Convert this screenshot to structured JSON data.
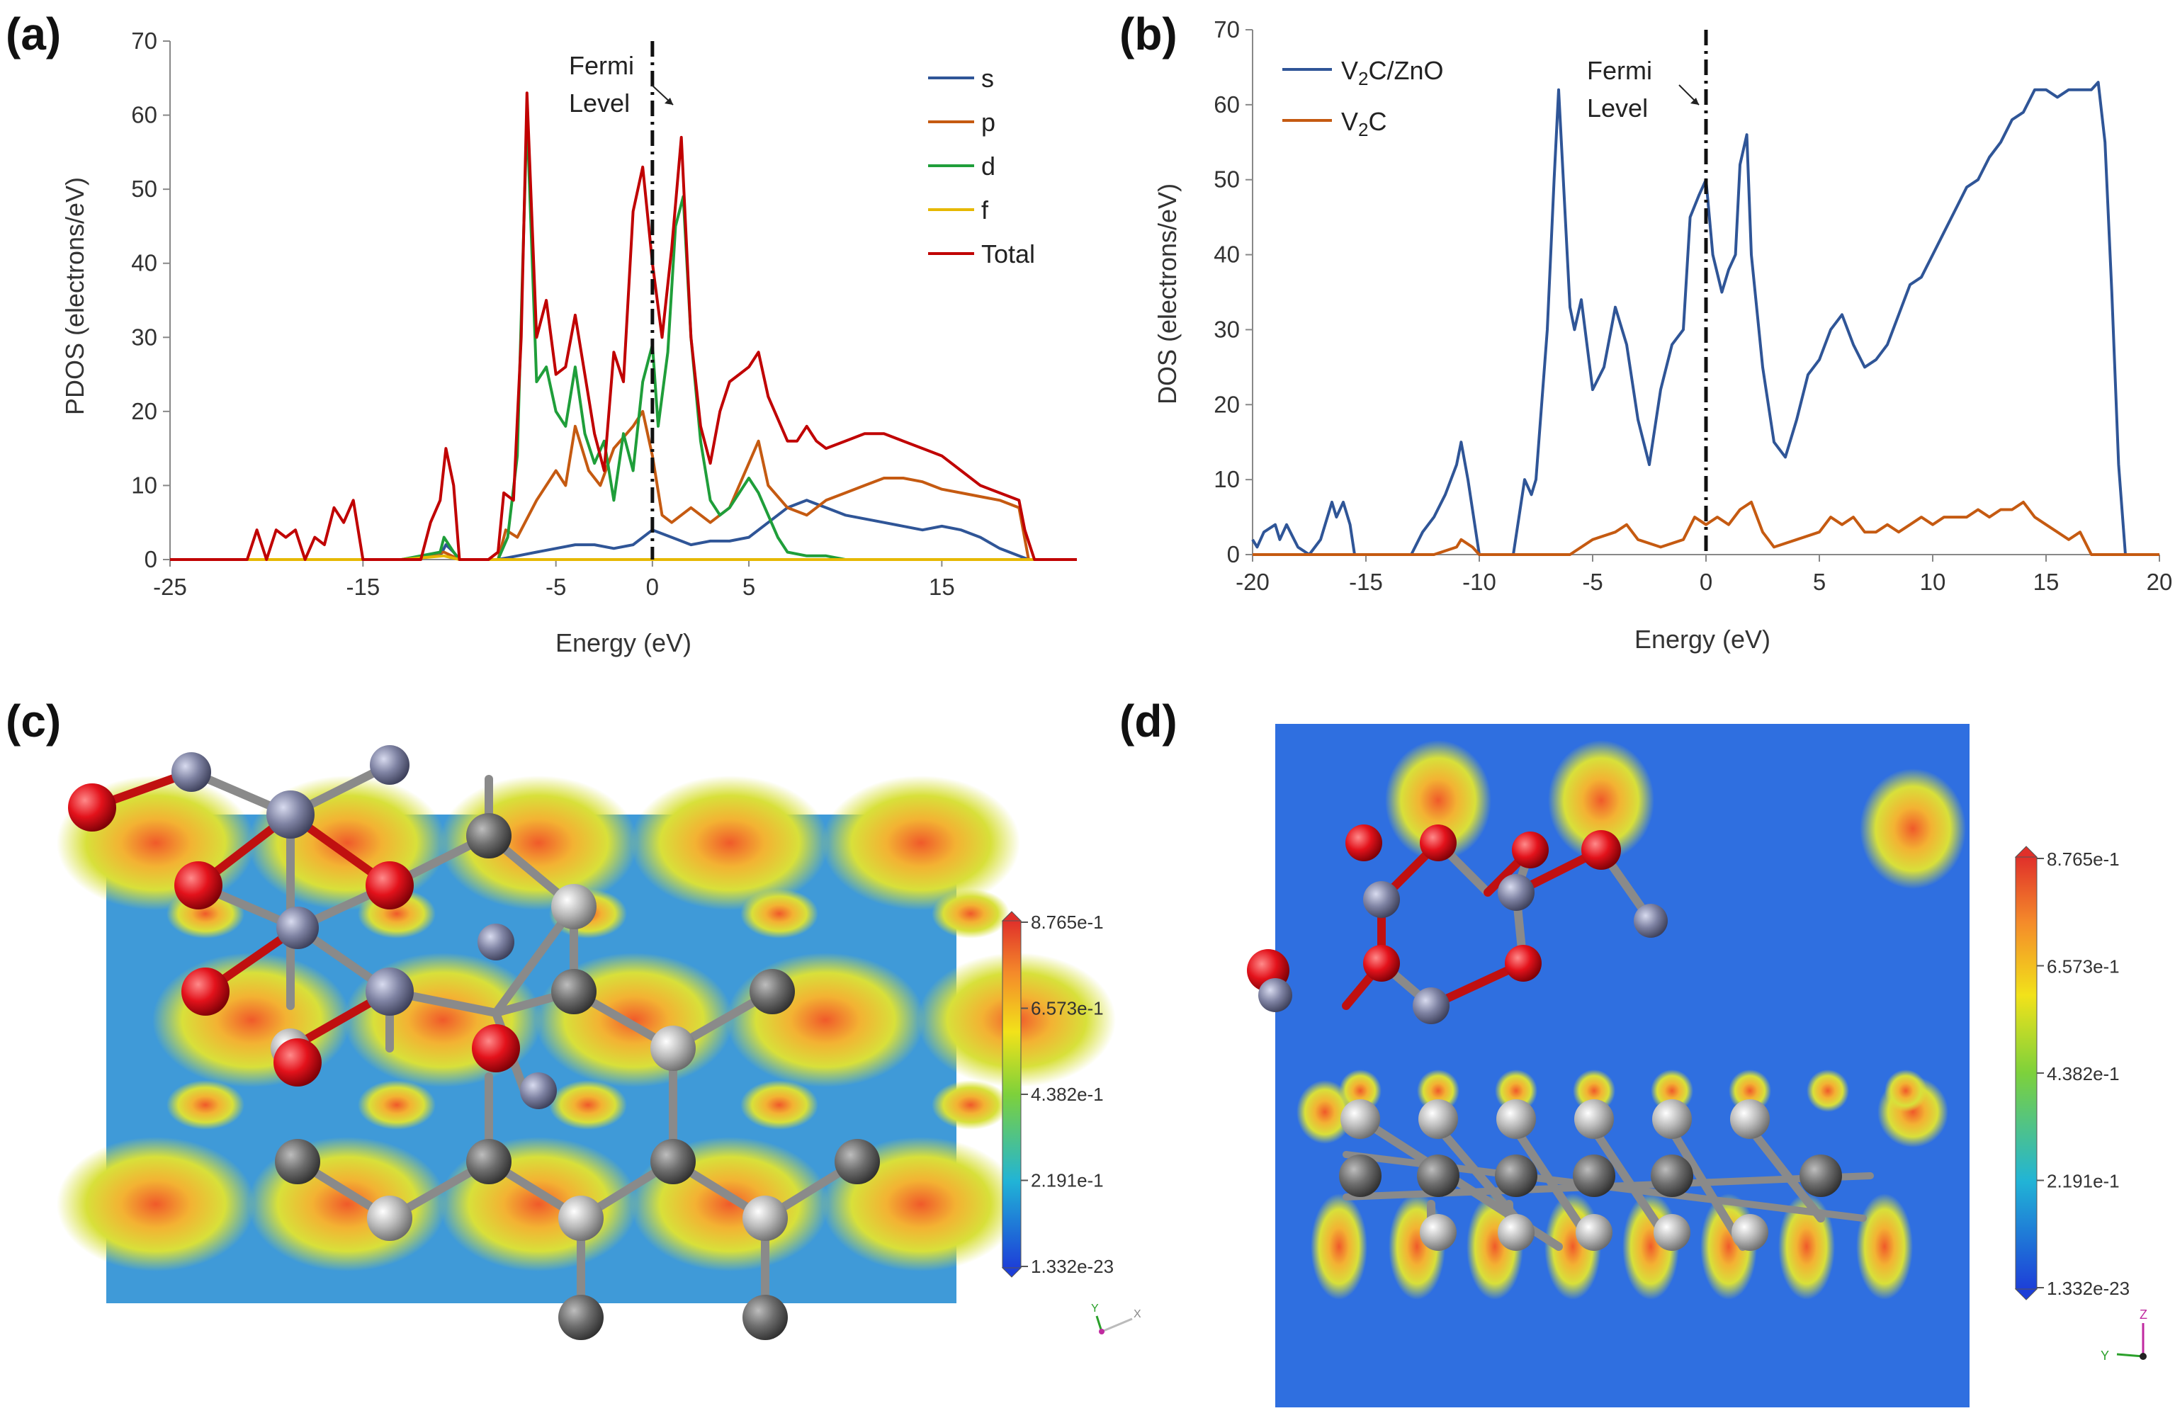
{
  "panel_labels": {
    "a": "(a)",
    "b": "(b)",
    "c": "(c)",
    "d": "(d)"
  },
  "annotation": {
    "line1": "Fermi",
    "line2": "Level"
  },
  "chart_data": [
    {
      "id": "a",
      "type": "line",
      "title": "",
      "xlabel": "Energy (eV)",
      "ylabel": "PDOS (electrons/eV)",
      "xlim": [
        -25,
        22
      ],
      "ylim": [
        0,
        70
      ],
      "xticks": [
        -25,
        -15,
        -5,
        0,
        5,
        15
      ],
      "yticks": [
        0,
        10,
        20,
        30,
        40,
        50,
        60,
        70
      ],
      "fermi_level": 0,
      "legend_position": "top-right",
      "series": [
        {
          "name": "s",
          "color": "#2F5597",
          "x": [
            -25,
            -13,
            -11,
            -10.7,
            -10.3,
            -10,
            -8,
            -7,
            -6,
            -5,
            -4,
            -3,
            -2,
            -1,
            0,
            1,
            2,
            3,
            4,
            5,
            6,
            7,
            8,
            9,
            10,
            12,
            14,
            15,
            16,
            17,
            18,
            19,
            19.5,
            22
          ],
          "y": [
            0,
            0,
            0.5,
            2,
            1,
            0,
            0,
            0.5,
            1,
            1.5,
            2,
            2,
            1.5,
            2,
            4,
            3,
            2,
            2.5,
            2.5,
            3,
            5,
            7,
            8,
            7,
            6,
            5,
            4,
            4.5,
            4,
            3,
            1.5,
            0.5,
            0,
            0
          ]
        },
        {
          "name": "p",
          "color": "#C55A11",
          "x": [
            -25,
            -13,
            -10.8,
            -10,
            -8,
            -7.6,
            -7,
            -6,
            -5,
            -4.5,
            -4,
            -3.3,
            -2.7,
            -2,
            -1,
            -0.5,
            0,
            0.5,
            1,
            2,
            3,
            4,
            5,
            5.5,
            6,
            7,
            8,
            9,
            10,
            11,
            12,
            13,
            14,
            15,
            16,
            17,
            18,
            19,
            19.5,
            22
          ],
          "y": [
            0,
            0,
            1,
            0,
            0,
            4,
            3,
            8,
            12,
            10,
            18,
            12,
            10,
            15,
            18,
            20,
            14,
            6,
            5,
            7,
            5,
            7,
            13,
            16,
            10,
            7,
            6,
            8,
            9,
            10,
            11,
            11,
            10.5,
            9.5,
            9,
            8.5,
            8,
            7,
            0,
            0
          ]
        },
        {
          "name": "d",
          "color": "#1F9E3A",
          "x": [
            -25,
            -13,
            -11,
            -10.8,
            -10.3,
            -10,
            -8,
            -7.5,
            -7,
            -6.5,
            -6,
            -5.5,
            -5,
            -4.5,
            -4,
            -3.5,
            -3,
            -2.5,
            -2,
            -1.5,
            -1,
            -0.5,
            0,
            0.3,
            0.8,
            1.2,
            1.6,
            2,
            2.5,
            3,
            3.5,
            4,
            4.5,
            5,
            5.5,
            6,
            6.5,
            7,
            8,
            9,
            10,
            12,
            15,
            22
          ],
          "y": [
            0,
            0,
            1,
            3,
            1,
            0,
            0,
            3,
            14,
            60,
            24,
            26,
            20,
            18,
            26,
            17,
            13,
            16,
            8,
            17,
            12,
            24,
            29,
            18,
            28,
            45,
            49,
            30,
            16,
            8,
            6,
            7,
            9,
            11,
            9,
            6,
            3,
            1,
            0.5,
            0.5,
            0,
            0,
            0,
            0
          ]
        },
        {
          "name": "f",
          "color": "#E6B800",
          "x": [
            -25,
            -13,
            -10.8,
            -10,
            22
          ],
          "y": [
            0,
            0,
            0.5,
            0,
            0
          ]
        },
        {
          "name": "Total",
          "color": "#C00000",
          "x": [
            -25,
            -21,
            -20.5,
            -20,
            -19.5,
            -19,
            -18.5,
            -18,
            -17.5,
            -17,
            -16.5,
            -16,
            -15.5,
            -15,
            -14,
            -13,
            -12,
            -11.5,
            -11,
            -10.7,
            -10.3,
            -10,
            -9,
            -8.5,
            -8,
            -7.7,
            -7.2,
            -6.8,
            -6.5,
            -6,
            -5.5,
            -5,
            -4.5,
            -4,
            -3.5,
            -3,
            -2.5,
            -2,
            -1.5,
            -1,
            -0.5,
            0,
            0.5,
            1,
            1.5,
            2,
            2.5,
            3,
            3.5,
            4,
            4.5,
            5,
            5.5,
            6,
            6.5,
            7,
            7.5,
            8,
            8.5,
            9,
            10,
            11,
            12,
            13,
            14,
            15,
            16,
            17,
            18,
            19,
            19.3,
            19.8,
            22
          ],
          "y": [
            0,
            0,
            4,
            0,
            4,
            3,
            4,
            0,
            3,
            2,
            7,
            5,
            8,
            0,
            0,
            0,
            0,
            5,
            8,
            15,
            10,
            0,
            0,
            0,
            1,
            9,
            8,
            30,
            63,
            30,
            35,
            25,
            26,
            33,
            25,
            17,
            12,
            28,
            24,
            47,
            53,
            40,
            30,
            42,
            57,
            30,
            18,
            13,
            20,
            24,
            25,
            26,
            28,
            22,
            19,
            16,
            16,
            18,
            16,
            15,
            16,
            17,
            17,
            16,
            15,
            14,
            12,
            10,
            9,
            8,
            4,
            0,
            0
          ]
        }
      ]
    },
    {
      "id": "b",
      "type": "line",
      "title": "",
      "xlabel": "Energy (eV)",
      "ylabel": "DOS (electrons/eV)",
      "xlim": [
        -20,
        20
      ],
      "ylim": [
        0,
        70
      ],
      "xticks": [
        -20,
        -15,
        -10,
        -5,
        0,
        5,
        10,
        15,
        20
      ],
      "yticks": [
        0,
        10,
        20,
        30,
        40,
        50,
        60,
        70
      ],
      "fermi_level": 0,
      "legend_position": "top-left",
      "series": [
        {
          "name": "V2C/ZnO",
          "name_parts": [
            "V",
            "2",
            "C/ZnO"
          ],
          "color": "#2F5597",
          "x": [
            -20,
            -19.8,
            -19.5,
            -19,
            -18.8,
            -18.5,
            -18,
            -17.5,
            -17,
            -16.5,
            -16.3,
            -16,
            -15.7,
            -15.5,
            -15,
            -14,
            -13,
            -12.5,
            -12,
            -11.5,
            -11,
            -10.8,
            -10.5,
            -10,
            -9,
            -8.5,
            -8,
            -7.7,
            -7.5,
            -7,
            -6.7,
            -6.5,
            -6,
            -5.8,
            -5.5,
            -5,
            -4.5,
            -4,
            -3.5,
            -3,
            -2.5,
            -2,
            -1.5,
            -1,
            -0.7,
            -0.3,
            0,
            0.3,
            0.7,
            1,
            1.3,
            1.5,
            1.8,
            2,
            2.5,
            3,
            3.5,
            4,
            4.5,
            5,
            5.5,
            6,
            6.5,
            7,
            7.5,
            8,
            8.5,
            9,
            9.5,
            10,
            10.5,
            11,
            11.5,
            12,
            12.5,
            13,
            13.5,
            14,
            14.5,
            15,
            15.5,
            16,
            16.5,
            17,
            17.3,
            17.6,
            17.9,
            18.2,
            18.5,
            19,
            20
          ],
          "y": [
            2,
            1,
            3,
            4,
            2,
            4,
            1,
            0,
            2,
            7,
            5,
            7,
            4,
            0,
            0,
            0,
            0,
            3,
            5,
            8,
            12,
            15,
            10,
            0,
            0,
            0,
            10,
            8,
            10,
            30,
            50,
            62,
            33,
            30,
            34,
            22,
            25,
            33,
            28,
            18,
            12,
            22,
            28,
            30,
            45,
            48,
            50,
            40,
            35,
            38,
            40,
            52,
            56,
            40,
            25,
            15,
            13,
            18,
            24,
            26,
            30,
            32,
            28,
            25,
            26,
            28,
            32,
            36,
            37,
            40,
            43,
            46,
            49,
            50,
            53,
            55,
            58,
            59,
            62,
            62,
            61,
            62,
            62,
            62,
            63,
            55,
            35,
            12,
            0,
            0,
            0
          ]
        },
        {
          "name": "V2C",
          "name_parts": [
            "V",
            "2",
            "C"
          ],
          "color": "#C55A11",
          "x": [
            -20,
            -12,
            -11,
            -10.8,
            -10.3,
            -10,
            -6,
            -5,
            -4,
            -3.5,
            -3,
            -2,
            -1,
            -0.5,
            0,
            0.5,
            1,
            1.5,
            2,
            2.5,
            3,
            4,
            5,
            5.5,
            6,
            6.5,
            7,
            7.5,
            8,
            8.5,
            9,
            9.5,
            10,
            10.5,
            11,
            11.5,
            12,
            12.5,
            13,
            13.5,
            14,
            14.5,
            15,
            15.5,
            16,
            16.5,
            17,
            17.5,
            18,
            18.5,
            20
          ],
          "y": [
            0,
            0,
            1,
            2,
            1,
            0,
            0,
            2,
            3,
            4,
            2,
            1,
            2,
            5,
            4,
            5,
            4,
            6,
            7,
            3,
            1,
            2,
            3,
            5,
            4,
            5,
            3,
            3,
            4,
            3,
            4,
            5,
            4,
            5,
            5,
            5,
            6,
            5,
            6,
            6,
            7,
            5,
            4,
            3,
            2,
            3,
            0,
            0,
            0,
            0,
            0
          ]
        }
      ]
    }
  ],
  "colorbar": {
    "labels": [
      "8.765e-1",
      "6.573e-1",
      "4.382e-1",
      "2.191e-1",
      "1.332e-23"
    ]
  },
  "axis_triad": {
    "c": [
      "Y",
      "X"
    ],
    "d": [
      "Z",
      "Y"
    ]
  }
}
